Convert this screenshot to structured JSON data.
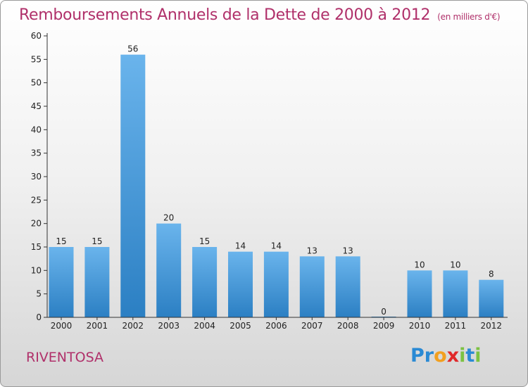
{
  "chart_data": {
    "type": "bar",
    "title": "Remboursements Annuels de la Dette de 2000 à 2012",
    "subtitle": "(en milliers d'€)",
    "categories": [
      "2000",
      "2001",
      "2002",
      "2003",
      "2004",
      "2005",
      "2006",
      "2007",
      "2008",
      "2009",
      "2010",
      "2011",
      "2012"
    ],
    "values": [
      15,
      15,
      56,
      20,
      15,
      14,
      14,
      13,
      13,
      0,
      10,
      10,
      8
    ],
    "value_labels": [
      "15",
      "15",
      "56",
      "20",
      "15",
      "14",
      "14",
      "13",
      "13",
      "0",
      "10",
      "10",
      "8"
    ],
    "y_ticks": [
      0,
      5,
      10,
      15,
      20,
      25,
      30,
      35,
      40,
      45,
      50,
      55,
      60
    ],
    "ylim": [
      0,
      60
    ],
    "xlabel": "",
    "ylabel": "",
    "grid": false,
    "bar_color_light": "#6ab4ec",
    "bar_color_dark": "#2b7fc3"
  },
  "footer": {
    "commune": "RIVENTOSA",
    "logo_letters": [
      {
        "char": "P",
        "color": "#2a8ad4"
      },
      {
        "char": "r",
        "color": "#2a8ad4"
      },
      {
        "char": "o",
        "color": "#f2a020"
      },
      {
        "char": "x",
        "color": "#e0282a"
      },
      {
        "char": "i",
        "color": "#7cc242"
      },
      {
        "char": "t",
        "color": "#2a8ad4"
      },
      {
        "char": "i",
        "color": "#7cc242"
      }
    ]
  },
  "colors": {
    "title": "#b0306a",
    "axis": "#333333"
  }
}
